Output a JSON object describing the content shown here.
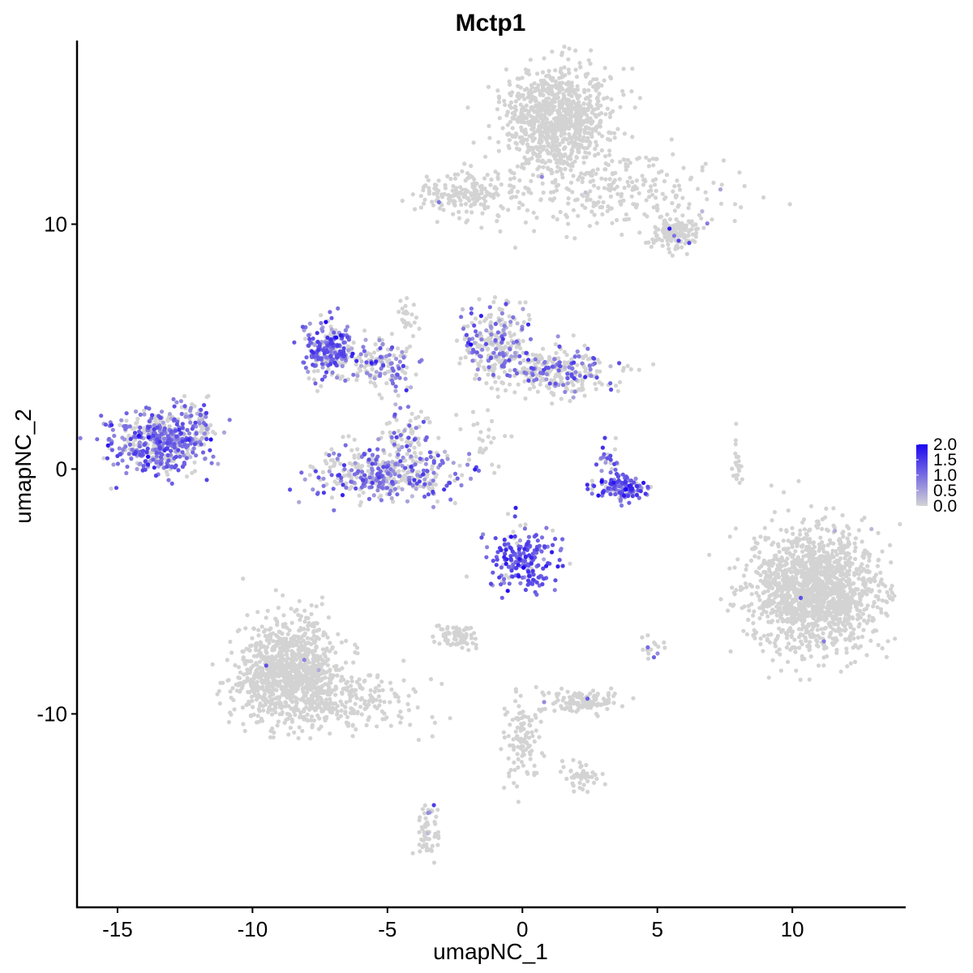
{
  "chart_data": {
    "type": "scatter",
    "title": "Mctp1",
    "xlabel": "umapNC_1",
    "ylabel": "umapNC_2",
    "xlim": [
      -16.5,
      14.2
    ],
    "ylim": [
      -17.9,
      17.5
    ],
    "x_ticks": [
      -15,
      -10,
      -5,
      0,
      5,
      10
    ],
    "x_tick_labels": [
      "-15",
      "-10",
      "-5",
      "0",
      "5",
      "10"
    ],
    "y_ticks": [
      -10,
      0,
      10
    ],
    "y_tick_labels": [
      "-10",
      "0",
      "10"
    ],
    "grid": false,
    "legend_position": "right",
    "color_scale": {
      "low_color": "#d3d3d3",
      "high_color": "#1c05f2",
      "min": 0,
      "max": 2.0,
      "breaks": [
        0.0,
        0.5,
        1.0,
        1.5,
        2.0
      ],
      "break_labels": [
        "0.0",
        "0.5",
        "1.0",
        "1.5",
        "2.0"
      ]
    },
    "clusters": [
      {
        "cx": 1.3,
        "cy": 14.3,
        "sx": 0.95,
        "sy": 1.1,
        "n": 900,
        "expr_frac": 0.0,
        "expr_mean": 0.0
      },
      {
        "cx": 3.5,
        "cy": 11.4,
        "sx": 2.2,
        "sy": 0.8,
        "n": 260,
        "expr_frac": 0.01,
        "expr_mean": 0.8
      },
      {
        "cx": 5.6,
        "cy": 9.7,
        "sx": 0.45,
        "sy": 0.35,
        "n": 140,
        "expr_frac": 0.04,
        "expr_mean": 1.0
      },
      {
        "cx": -2.0,
        "cy": 11.3,
        "sx": 0.9,
        "sy": 0.45,
        "n": 180,
        "expr_frac": 0.01,
        "expr_mean": 0.9
      },
      {
        "cx": -13.4,
        "cy": 1.2,
        "sx": 0.9,
        "sy": 0.65,
        "n": 520,
        "expr_frac": 0.7,
        "expr_mean": 0.9
      },
      {
        "cx": -12.0,
        "cy": 1.8,
        "sx": 0.3,
        "sy": 0.45,
        "n": 50,
        "expr_frac": 0.25,
        "expr_mean": 0.6
      },
      {
        "cx": -7.2,
        "cy": 4.9,
        "sx": 0.45,
        "sy": 0.55,
        "n": 240,
        "expr_frac": 0.7,
        "expr_mean": 1.0
      },
      {
        "cx": -5.2,
        "cy": 4.2,
        "sx": 0.6,
        "sy": 0.5,
        "n": 140,
        "expr_frac": 0.45,
        "expr_mean": 0.8
      },
      {
        "cx": -5.0,
        "cy": -0.2,
        "sx": 1.3,
        "sy": 0.55,
        "n": 420,
        "expr_frac": 0.5,
        "expr_mean": 0.9
      },
      {
        "cx": -4.2,
        "cy": 1.4,
        "sx": 0.5,
        "sy": 0.6,
        "n": 80,
        "expr_frac": 0.35,
        "expr_mean": 0.8
      },
      {
        "cx": -1.0,
        "cy": 5.2,
        "sx": 0.6,
        "sy": 0.7,
        "n": 220,
        "expr_frac": 0.45,
        "expr_mean": 0.8
      },
      {
        "cx": 1.2,
        "cy": 4.0,
        "sx": 1.1,
        "sy": 0.45,
        "n": 300,
        "expr_frac": 0.3,
        "expr_mean": 0.9
      },
      {
        "cx": 3.6,
        "cy": -0.8,
        "sx": 0.6,
        "sy": 0.25,
        "n": 130,
        "expr_frac": 0.8,
        "expr_mean": 1.2
      },
      {
        "cx": 3.2,
        "cy": 0.6,
        "sx": 0.2,
        "sy": 0.4,
        "n": 25,
        "expr_frac": 0.6,
        "expr_mean": 1.1
      },
      {
        "cx": 0.0,
        "cy": -3.6,
        "sx": 0.6,
        "sy": 0.65,
        "n": 200,
        "expr_frac": 0.85,
        "expr_mean": 1.2
      },
      {
        "cx": -8.7,
        "cy": -8.3,
        "sx": 0.95,
        "sy": 1.05,
        "n": 1000,
        "expr_frac": 0.005,
        "expr_mean": 0.8
      },
      {
        "cx": -6.5,
        "cy": -9.4,
        "sx": 1.2,
        "sy": 0.6,
        "n": 220,
        "expr_frac": 0.0,
        "expr_mean": 0.0
      },
      {
        "cx": -2.5,
        "cy": -6.8,
        "sx": 0.35,
        "sy": 0.25,
        "n": 70,
        "expr_frac": 0.03,
        "expr_mean": 0.9
      },
      {
        "cx": 2.4,
        "cy": -9.5,
        "sx": 0.7,
        "sy": 0.25,
        "n": 110,
        "expr_frac": 0.04,
        "expr_mean": 0.9
      },
      {
        "cx": 0.0,
        "cy": -11.0,
        "sx": 0.35,
        "sy": 1.0,
        "n": 110,
        "expr_frac": 0.0,
        "expr_mean": 0.0
      },
      {
        "cx": 2.2,
        "cy": -12.6,
        "sx": 0.35,
        "sy": 0.3,
        "n": 45,
        "expr_frac": 0.0,
        "expr_mean": 0.0
      },
      {
        "cx": -3.5,
        "cy": -14.8,
        "sx": 0.2,
        "sy": 0.6,
        "n": 55,
        "expr_frac": 0.1,
        "expr_mean": 0.8
      },
      {
        "cx": 10.8,
        "cy": -5.0,
        "sx": 1.2,
        "sy": 1.2,
        "n": 1500,
        "expr_frac": 0.003,
        "expr_mean": 0.7
      },
      {
        "cx": 8.0,
        "cy": 0.3,
        "sx": 0.12,
        "sy": 0.55,
        "n": 20,
        "expr_frac": 0.0,
        "expr_mean": 0.0
      },
      {
        "cx": -1.4,
        "cy": 1.2,
        "sx": 0.5,
        "sy": 0.5,
        "n": 25,
        "expr_frac": 0.0,
        "expr_mean": 0.0
      },
      {
        "cx": -4.3,
        "cy": 6.3,
        "sx": 0.2,
        "sy": 0.6,
        "n": 25,
        "expr_frac": 0.0,
        "expr_mean": 0.0
      },
      {
        "cx": 4.8,
        "cy": -7.4,
        "sx": 0.25,
        "sy": 0.3,
        "n": 15,
        "expr_frac": 0.1,
        "expr_mean": 0.8
      }
    ]
  }
}
